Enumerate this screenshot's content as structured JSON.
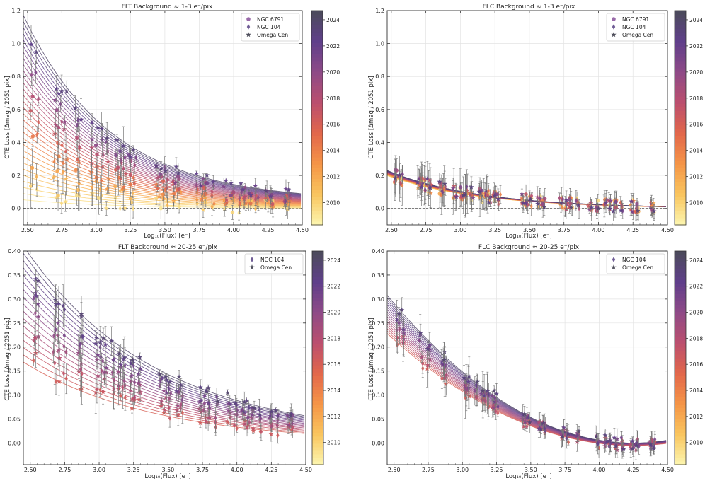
{
  "figure": {
    "colorbar_ticks": [
      "2010",
      "2012",
      "2014",
      "2016",
      "2018",
      "2020",
      "2022",
      "2024"
    ],
    "colorbar_range": [
      2008.3,
      2024.7
    ],
    "colormap": [
      "#fcf6b0",
      "#f9c55e",
      "#f59547",
      "#e2674b",
      "#bb4f6e",
      "#8e4a87",
      "#5f3f8a",
      "#4b4b5a"
    ]
  },
  "chart_data": [
    {
      "id": "flt-low",
      "type": "scatter",
      "title": "FLT   Background ≈ 1-3 e⁻/pix",
      "xlabel": "Log₁₀(Flux) [e⁻]",
      "ylabel": "CTE Loss [Δmag / 2051 pix]",
      "xlim": [
        2.47,
        4.5
      ],
      "ylim": [
        -0.1,
        1.2
      ],
      "xticks": [
        "2.50",
        "2.75",
        "3.00",
        "3.25",
        "3.50",
        "3.75",
        "4.00",
        "4.25",
        "4.50"
      ],
      "xtick_values": [
        2.5,
        2.75,
        3.0,
        3.25,
        3.5,
        3.75,
        4.0,
        4.25,
        4.5
      ],
      "yticks": [
        "0.0",
        "0.2",
        "0.4",
        "0.6",
        "0.8",
        "1.0",
        "1.2"
      ],
      "ytick_values": [
        0.0,
        0.2,
        0.4,
        0.6,
        0.8,
        1.0,
        1.2
      ],
      "legend": [
        {
          "label": "NGC 6791",
          "marker": "circle"
        },
        {
          "label": "NGC 104",
          "marker": "diamond"
        },
        {
          "label": "Omega Cen",
          "marker": "star"
        }
      ],
      "fit_model": "y = a(t)*exp(-b*(x-2.5)) + c",
      "fit_params": {
        "a_min": 0.05,
        "a_max": 1.08,
        "b": 1.55,
        "c_min": 0.0,
        "c_max": 0.04
      },
      "clusters_x": [
        2.53,
        2.57,
        2.7,
        2.72,
        2.75,
        2.78,
        2.86,
        2.88,
        2.96,
        3.01,
        3.04,
        3.08,
        3.15,
        3.18,
        3.21,
        3.25,
        3.28,
        3.45,
        3.48,
        3.51,
        3.57,
        3.6,
        3.73,
        3.77,
        3.8,
        3.85,
        3.94,
        3.99,
        4.05,
        4.08,
        4.12,
        4.17,
        4.24,
        4.28,
        4.38,
        4.4
      ],
      "year_range": [
        2009,
        2024
      ]
    },
    {
      "id": "flc-low",
      "type": "scatter",
      "title": "FLC   Background ≈ 1-3 e⁻/pix",
      "xlabel": "Log₁₀(Flux) [e⁻]",
      "ylabel": "CTE Loss [Δmag / 2051 pix]",
      "xlim": [
        2.47,
        4.5
      ],
      "ylim": [
        -0.1,
        1.2
      ],
      "xticks": [
        "2.50",
        "2.75",
        "3.00",
        "3.25",
        "3.50",
        "3.75",
        "4.00",
        "4.25",
        "4.50"
      ],
      "xtick_values": [
        2.5,
        2.75,
        3.0,
        3.25,
        3.5,
        3.75,
        4.0,
        4.25,
        4.5
      ],
      "yticks": [
        "0.0",
        "0.2",
        "0.4",
        "0.6",
        "0.8",
        "1.0",
        "1.2"
      ],
      "ytick_values": [
        0.0,
        0.2,
        0.4,
        0.6,
        0.8,
        1.0,
        1.2
      ],
      "legend": [
        {
          "label": "NGC 6791",
          "marker": "circle"
        },
        {
          "label": "NGC 104",
          "marker": "diamond"
        },
        {
          "label": "Omega Cen",
          "marker": "star"
        }
      ],
      "fit_model": "y = a(t)*exp(-b*(x-2.5)) + c",
      "fit_params": {
        "a_min": 0.19,
        "a_max": 0.22,
        "b": 1.5,
        "c_min": 0.0,
        "c_max": 0.0
      },
      "clusters_x": [
        2.53,
        2.57,
        2.7,
        2.72,
        2.75,
        2.78,
        2.86,
        2.88,
        2.96,
        3.01,
        3.04,
        3.08,
        3.15,
        3.18,
        3.21,
        3.25,
        3.28,
        3.45,
        3.48,
        3.51,
        3.57,
        3.6,
        3.73,
        3.77,
        3.8,
        3.85,
        3.94,
        3.99,
        4.05,
        4.08,
        4.12,
        4.17,
        4.24,
        4.28,
        4.38,
        4.4
      ],
      "year_range": [
        2009,
        2024
      ]
    },
    {
      "id": "flt-high",
      "type": "scatter",
      "title": "FLT   Background ≈ 20-25 e⁻/pix",
      "xlabel": "Log₁₀(Flux) [e⁻]",
      "ylabel": "CTE Loss [Δmag / 2051 pix]",
      "xlim": [
        2.45,
        4.5
      ],
      "ylim": [
        -0.045,
        0.4
      ],
      "xticks": [
        "2.50",
        "2.75",
        "3.00",
        "3.25",
        "3.50",
        "3.75",
        "4.00",
        "4.25",
        "4.50"
      ],
      "xtick_values": [
        2.5,
        2.75,
        3.0,
        3.25,
        3.5,
        3.75,
        4.0,
        4.25,
        4.5
      ],
      "yticks": [
        "0.00",
        "0.05",
        "0.10",
        "0.15",
        "0.20",
        "0.25",
        "0.30",
        "0.35",
        "0.40"
      ],
      "ytick_values": [
        0.0,
        0.05,
        0.1,
        0.15,
        0.2,
        0.25,
        0.3,
        0.35,
        0.4
      ],
      "legend": [
        {
          "label": "NGC 104",
          "marker": "diamond"
        },
        {
          "label": "Omega Cen",
          "marker": "star"
        }
      ],
      "fit_model": "y = a(t)*exp(-b*(x-2.5)) + c",
      "fit_params": {
        "a_min": 0.16,
        "a_max": 0.38,
        "b": 1.05,
        "c_min": 0.0,
        "c_max": 0.01
      },
      "clusters_x": [
        2.53,
        2.55,
        2.68,
        2.7,
        2.75,
        2.86,
        2.87,
        2.98,
        3.02,
        3.04,
        3.1,
        3.15,
        3.18,
        3.23,
        3.25,
        3.29,
        3.45,
        3.48,
        3.51,
        3.57,
        3.6,
        3.73,
        3.77,
        3.8,
        3.85,
        3.94,
        3.99,
        4.05,
        4.08,
        4.12,
        4.17,
        4.24,
        4.29,
        4.38,
        4.4
      ],
      "year_range": [
        2016,
        2024
      ]
    },
    {
      "id": "flc-high",
      "type": "scatter",
      "title": "FLC   Background ≈ 20-25 e⁻/pix",
      "xlabel": "Log₁₀(Flux) [e⁻]",
      "ylabel": "CTE Loss [Δmag / 2051 pix]",
      "xlim": [
        2.45,
        4.5
      ],
      "ylim": [
        -0.045,
        0.4
      ],
      "xticks": [
        "2.50",
        "2.75",
        "3.00",
        "3.25",
        "3.50",
        "3.75",
        "4.00",
        "4.25",
        "4.50"
      ],
      "xtick_values": [
        2.5,
        2.75,
        3.0,
        3.25,
        3.5,
        3.75,
        4.0,
        4.25,
        4.5
      ],
      "yticks": [
        "0.00",
        "0.05",
        "0.10",
        "0.15",
        "0.20",
        "0.25",
        "0.30",
        "0.35",
        "0.40"
      ],
      "ytick_values": [
        0.0,
        0.05,
        0.1,
        0.15,
        0.2,
        0.25,
        0.3,
        0.35,
        0.4
      ],
      "legend": [
        {
          "label": "NGC 104",
          "marker": "diamond"
        },
        {
          "label": "Omega Cen",
          "marker": "star"
        }
      ],
      "fit_model": "y = a(t)*(x-4.25)^2 + c",
      "fit_params": {
        "a_min": 0.072,
        "a_max": 0.095,
        "b": 2.0,
        "c_min": -0.005,
        "c_max": 0.0
      },
      "clusters_x": [
        2.53,
        2.56,
        2.7,
        2.75,
        2.86,
        2.87,
        3.02,
        3.04,
        3.1,
        3.15,
        3.18,
        3.23,
        3.25,
        3.45,
        3.48,
        3.57,
        3.6,
        3.73,
        3.77,
        3.85,
        3.99,
        4.05,
        4.08,
        4.12,
        4.17,
        4.24,
        4.28,
        4.38,
        4.4
      ],
      "year_range": [
        2016,
        2024
      ]
    }
  ]
}
